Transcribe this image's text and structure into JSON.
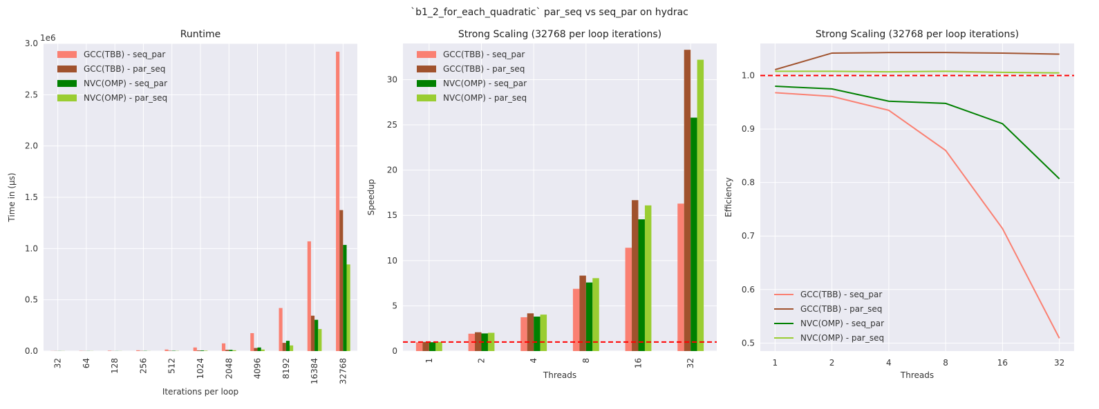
{
  "title": "`b1_2_for_each_quadratic` par_seq vs seq_par on hydrac",
  "colors": {
    "GCC(TBB) - seq_par": "#fa8072",
    "GCC(TBB) - par_seq": "#a0522d",
    "NVC(OMP) - seq_par": "#008000",
    "NVC(OMP) - par_seq": "#9acd32",
    "reference": "#ff0000",
    "axes_bg": "#eaeaf2",
    "grid": "#ffffff"
  },
  "chart_data": [
    {
      "type": "bar",
      "title": "Runtime",
      "xlabel": "Iterations per loop",
      "ylabel": "Time in (µs)",
      "y_offset_label": "1e6",
      "ylim": [
        0,
        3.0
      ],
      "yticks": [
        "0.0",
        "0.5",
        "1.0",
        "1.5",
        "2.0",
        "2.5",
        "3.0"
      ],
      "grid": true,
      "legend": "top-left",
      "categories": [
        "32",
        "64",
        "128",
        "256",
        "512",
        "1024",
        "2048",
        "4096",
        "8192",
        "16384",
        "32768"
      ],
      "series": [
        {
          "name": "GCC(TBB) - seq_par",
          "values": [
            0.001,
            0.002,
            0.004,
            0.008,
            0.015,
            0.035,
            0.075,
            0.175,
            0.42,
            1.07,
            2.92
          ]
        },
        {
          "name": "GCC(TBB) - par_seq",
          "values": [
            0.001,
            0.001,
            0.001,
            0.002,
            0.003,
            0.006,
            0.012,
            0.03,
            0.08,
            0.345,
            1.375
          ]
        },
        {
          "name": "NVC(OMP) - seq_par",
          "values": [
            0.001,
            0.001,
            0.001,
            0.002,
            0.003,
            0.006,
            0.012,
            0.035,
            0.1,
            0.305,
            1.035
          ]
        },
        {
          "name": "NVC(OMP) - par_seq",
          "values": [
            0.001,
            0.001,
            0.001,
            0.001,
            0.002,
            0.004,
            0.008,
            0.015,
            0.055,
            0.215,
            0.845
          ]
        }
      ]
    },
    {
      "type": "bar",
      "title": "Strong Scaling (32768 per loop iterations)",
      "xlabel": "Threads",
      "ylabel": "Speedup",
      "ylim": [
        0,
        34
      ],
      "yticks": [
        "0",
        "5",
        "10",
        "15",
        "20",
        "25",
        "30"
      ],
      "reference_line": 1,
      "grid": true,
      "legend": "top-left",
      "categories": [
        "1",
        "2",
        "4",
        "8",
        "16",
        "32"
      ],
      "series": [
        {
          "name": "GCC(TBB) - seq_par",
          "values": [
            0.97,
            1.92,
            3.74,
            6.88,
            11.42,
            16.3
          ]
        },
        {
          "name": "GCC(TBB) - par_seq",
          "values": [
            1.01,
            2.08,
            4.17,
            8.34,
            16.68,
            33.3
          ]
        },
        {
          "name": "NVC(OMP) - seq_par",
          "values": [
            0.98,
            1.95,
            3.81,
            7.58,
            14.56,
            25.8
          ]
        },
        {
          "name": "NVC(OMP) - par_seq",
          "values": [
            1.01,
            2.02,
            4.03,
            8.06,
            16.1,
            32.2
          ]
        }
      ]
    },
    {
      "type": "line",
      "title": "Strong Scaling (32768 per loop iterations)",
      "xlabel": "Threads",
      "ylabel": "Efficiency",
      "ylim": [
        0.485,
        1.06
      ],
      "yticks": [
        "0.5",
        "0.6",
        "0.7",
        "0.8",
        "0.9",
        "1.0"
      ],
      "reference_line": 1.0,
      "grid": true,
      "legend": "bottom-left",
      "categories": [
        "1",
        "2",
        "4",
        "8",
        "16",
        "32"
      ],
      "series": [
        {
          "name": "GCC(TBB) - seq_par",
          "values": [
            0.968,
            0.961,
            0.935,
            0.86,
            0.714,
            0.509
          ]
        },
        {
          "name": "GCC(TBB) - par_seq",
          "values": [
            1.011,
            1.042,
            1.043,
            1.043,
            1.042,
            1.04
          ]
        },
        {
          "name": "NVC(OMP) - seq_par",
          "values": [
            0.98,
            0.975,
            0.952,
            0.948,
            0.91,
            0.807
          ]
        },
        {
          "name": "NVC(OMP) - par_seq",
          "values": [
            1.008,
            1.008,
            1.007,
            1.008,
            1.006,
            1.005
          ]
        }
      ]
    }
  ]
}
